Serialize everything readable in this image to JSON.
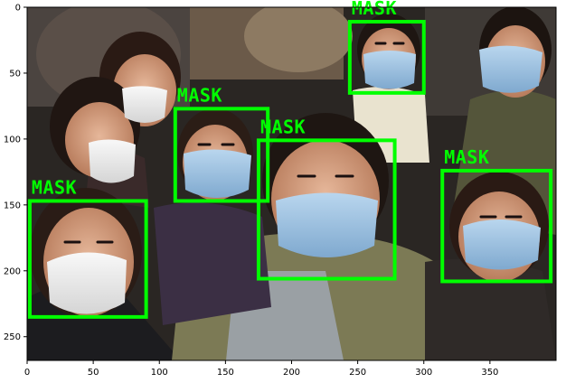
{
  "image_shape": [
    268,
    400
  ],
  "axes": {
    "x_ticks": [
      0,
      50,
      100,
      150,
      200,
      250,
      300,
      350
    ],
    "y_ticks": [
      0,
      50,
      100,
      150,
      200,
      250
    ]
  },
  "detections": [
    {
      "label": "MASK",
      "x0": 244,
      "y0": 11,
      "x1": 300,
      "y1": 65
    },
    {
      "label": "MASK",
      "x0": 112,
      "y0": 77,
      "x1": 182,
      "y1": 147
    },
    {
      "label": "MASK",
      "x0": 175,
      "y0": 101,
      "x1": 278,
      "y1": 206
    },
    {
      "label": "MASK",
      "x0": 314,
      "y0": 124,
      "x1": 396,
      "y1": 208
    },
    {
      "label": "MASK",
      "x0": 2,
      "y0": 147,
      "x1": 90,
      "y1": 235
    }
  ],
  "colors": {
    "box": "#00ff00",
    "axis": "#000000"
  }
}
